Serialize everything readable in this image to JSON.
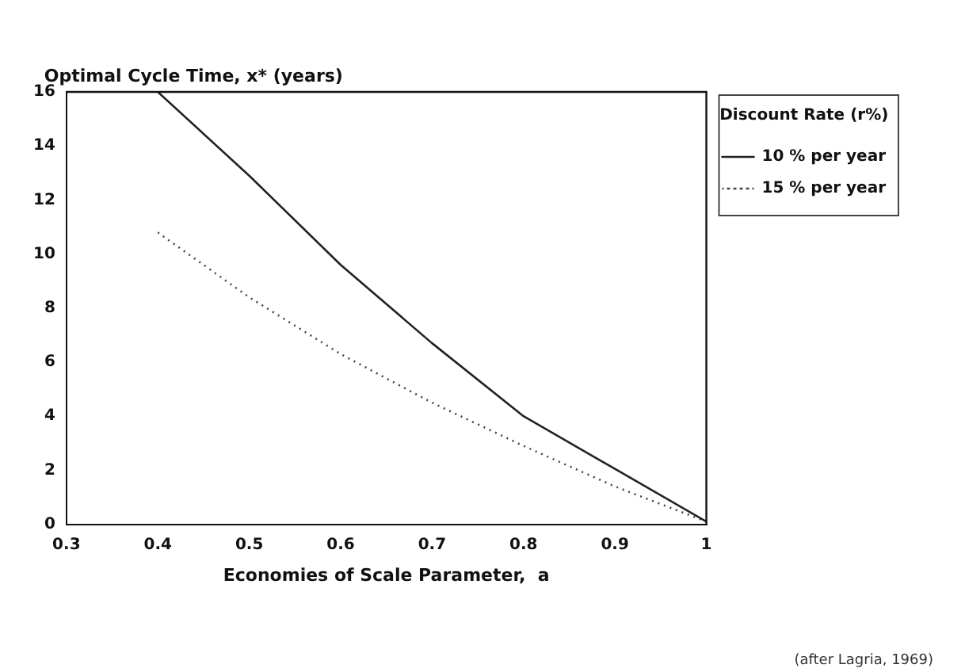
{
  "chart_data": {
    "type": "line",
    "ylabel": "Optimal Cycle Time, x* (years)",
    "xlabel": "Economies of Scale Parameter,  a",
    "legend_title": "Discount Rate (r%)",
    "legend": "top right",
    "grid": false,
    "marker": "none",
    "x": [
      0.4,
      0.5,
      0.6,
      0.7,
      0.8,
      0.9,
      1.0
    ],
    "xlim": [
      0.3,
      1.0
    ],
    "xticks": [
      0.3,
      0.4,
      0.5,
      0.6,
      0.7,
      0.8,
      0.9,
      1
    ],
    "ylim": [
      0,
      16
    ],
    "yticks": [
      0,
      2,
      4,
      6,
      8,
      10,
      12,
      14,
      16
    ],
    "series": [
      {
        "name": "10 % per year",
        "color": "#222222",
        "line_style": "solid",
        "values": [
          16,
          12.9,
          9.6,
          6.7,
          4.0,
          2.05,
          0.1
        ]
      },
      {
        "name": "15 % per year",
        "color": "#444444",
        "line_style": "dotted",
        "values": [
          10.8,
          8.4,
          6.3,
          4.5,
          2.9,
          1.4,
          0.1
        ]
      }
    ],
    "annotations": [
      "(after Lagria, 1969)"
    ]
  }
}
